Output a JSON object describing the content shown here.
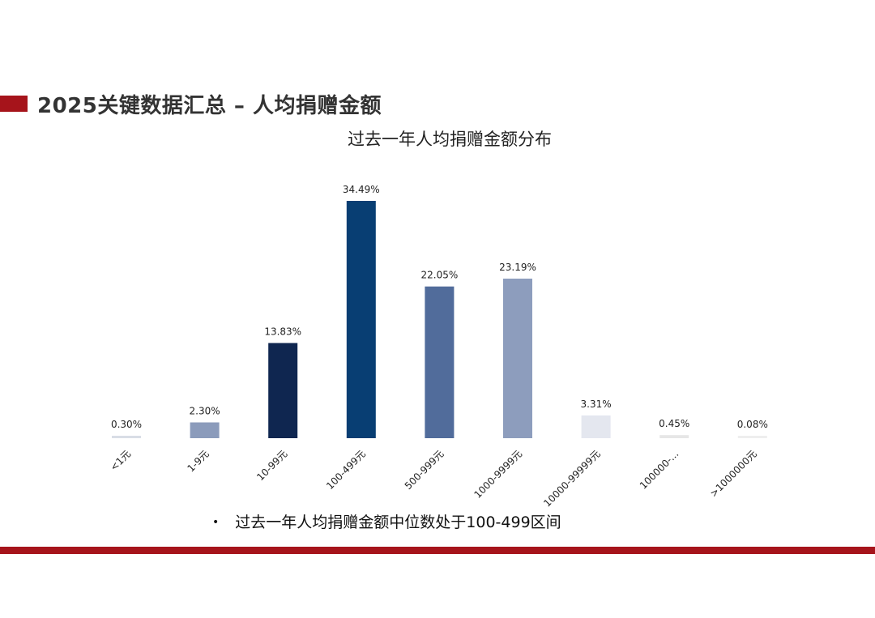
{
  "header": {
    "title": "2025关键数据汇总 – 人均捐赠金额",
    "accent_color": "#a6141b"
  },
  "note": {
    "bullet": "•",
    "text": "过去一年人均捐赠金额中位数处于100-499区间"
  },
  "footer": {
    "rule_color": "#a6141b"
  },
  "chart_data": {
    "type": "bar",
    "title": "过去一年人均捐赠金额分布",
    "xlabel": "",
    "ylabel": "",
    "ylim": [
      0,
      36
    ],
    "grid": false,
    "categories": [
      "<1元",
      "1-9元",
      "10-99元",
      "100-499元",
      "500-999元",
      "1000-9999元",
      "10000-99999元",
      "100000-...",
      ">1000000元"
    ],
    "values": [
      0.3,
      2.3,
      13.83,
      34.49,
      22.05,
      23.19,
      3.31,
      0.45,
      0.08
    ],
    "value_labels": [
      "0.30%",
      "2.30%",
      "13.83%",
      "34.49%",
      "22.05%",
      "23.19%",
      "3.31%",
      "0.45%",
      "0.08%"
    ],
    "colors": [
      "#d9dde6",
      "#8b9bbb",
      "#0f2650",
      "#083e73",
      "#516c9b",
      "#8d9dbd",
      "#e4e7ef",
      "#e6e6e6",
      "#eeeeee"
    ]
  }
}
